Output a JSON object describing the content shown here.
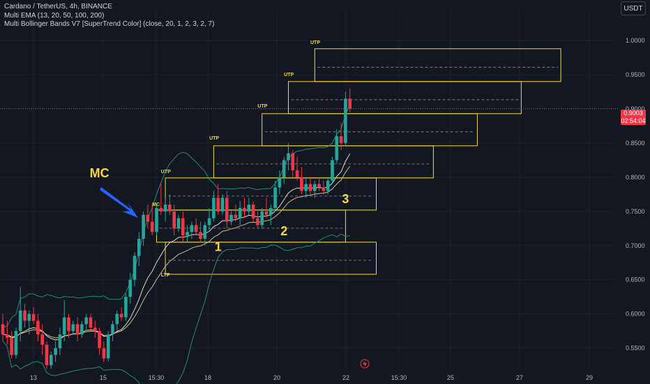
{
  "legend": {
    "symbol": "Cardano / TetherUS, 4h, BINANCE",
    "ema": "Multi EMA (13, 20, 50, 100, 200)",
    "bb": "Multi Bollinger Bands V7 [SuperTrend Color] (close, 20, 1, 2, 3, 2, 7)"
  },
  "currency": "USDT",
  "price_tag": {
    "price": "0.9003",
    "countdown": "02:54:04"
  },
  "colors": {
    "up": "#26a69a",
    "down": "#f23645",
    "box": "#f5d743",
    "arrow": "#2962ff",
    "bb": "#2a8a78",
    "ema": "#c8c08a"
  },
  "chart_data": {
    "type": "candlestick",
    "y_range": [
      0.52,
      1.045
    ],
    "y_ticks": [
      "1.0000",
      "0.9500",
      "0.9000",
      "0.8500",
      "0.8000",
      "0.7500",
      "0.7000",
      "0.6500",
      "0.6000",
      "0.5500"
    ],
    "x_ticks": [
      "13",
      "15",
      "15:30",
      "18",
      "20",
      "22",
      "15:30",
      "25",
      "27",
      "29"
    ],
    "current_price": 0.9003,
    "candles": [
      [
        0.585,
        0.6,
        0.56,
        0.57
      ],
      [
        0.57,
        0.59,
        0.555,
        0.565
      ],
      [
        0.565,
        0.575,
        0.535,
        0.54
      ],
      [
        0.54,
        0.58,
        0.535,
        0.575
      ],
      [
        0.575,
        0.64,
        0.56,
        0.605
      ],
      [
        0.605,
        0.615,
        0.58,
        0.59
      ],
      [
        0.59,
        0.605,
        0.57,
        0.6
      ],
      [
        0.6,
        0.61,
        0.585,
        0.59
      ],
      [
        0.59,
        0.6,
        0.56,
        0.57
      ],
      [
        0.57,
        0.585,
        0.54,
        0.555
      ],
      [
        0.555,
        0.56,
        0.52,
        0.525
      ],
      [
        0.525,
        0.545,
        0.52,
        0.54
      ],
      [
        0.54,
        0.56,
        0.53,
        0.55
      ],
      [
        0.55,
        0.58,
        0.54,
        0.57
      ],
      [
        0.57,
        0.62,
        0.56,
        0.595
      ],
      [
        0.595,
        0.6,
        0.565,
        0.575
      ],
      [
        0.575,
        0.59,
        0.57,
        0.585
      ],
      [
        0.585,
        0.595,
        0.56,
        0.57
      ],
      [
        0.57,
        0.59,
        0.565,
        0.585
      ],
      [
        0.585,
        0.6,
        0.575,
        0.595
      ],
      [
        0.595,
        0.6,
        0.575,
        0.58
      ],
      [
        0.58,
        0.59,
        0.565,
        0.575
      ],
      [
        0.575,
        0.58,
        0.54,
        0.55
      ],
      [
        0.55,
        0.56,
        0.53,
        0.535
      ],
      [
        0.535,
        0.575,
        0.53,
        0.57
      ],
      [
        0.57,
        0.59,
        0.56,
        0.585
      ],
      [
        0.585,
        0.605,
        0.575,
        0.6
      ],
      [
        0.6,
        0.61,
        0.59,
        0.595
      ],
      [
        0.595,
        0.63,
        0.59,
        0.625
      ],
      [
        0.625,
        0.66,
        0.615,
        0.65
      ],
      [
        0.65,
        0.69,
        0.64,
        0.685
      ],
      [
        0.685,
        0.72,
        0.67,
        0.71
      ],
      [
        0.71,
        0.75,
        0.7,
        0.745
      ],
      [
        0.745,
        0.76,
        0.725,
        0.735
      ],
      [
        0.735,
        0.76,
        0.715,
        0.72
      ],
      [
        0.72,
        0.76,
        0.715,
        0.755
      ],
      [
        0.755,
        0.79,
        0.745,
        0.75
      ],
      [
        0.75,
        0.77,
        0.735,
        0.76
      ],
      [
        0.76,
        0.775,
        0.745,
        0.75
      ],
      [
        0.75,
        0.76,
        0.715,
        0.725
      ],
      [
        0.725,
        0.745,
        0.72,
        0.74
      ],
      [
        0.74,
        0.75,
        0.705,
        0.715
      ],
      [
        0.715,
        0.73,
        0.705,
        0.72
      ],
      [
        0.72,
        0.735,
        0.71,
        0.73
      ],
      [
        0.73,
        0.74,
        0.715,
        0.72
      ],
      [
        0.72,
        0.735,
        0.705,
        0.71
      ],
      [
        0.71,
        0.735,
        0.7,
        0.73
      ],
      [
        0.73,
        0.755,
        0.72,
        0.74
      ],
      [
        0.74,
        0.78,
        0.735,
        0.77
      ],
      [
        0.77,
        0.79,
        0.745,
        0.75
      ],
      [
        0.75,
        0.775,
        0.745,
        0.77
      ],
      [
        0.77,
        0.78,
        0.725,
        0.735
      ],
      [
        0.735,
        0.75,
        0.73,
        0.745
      ],
      [
        0.745,
        0.76,
        0.735,
        0.74
      ],
      [
        0.74,
        0.765,
        0.73,
        0.755
      ],
      [
        0.755,
        0.77,
        0.74,
        0.75
      ],
      [
        0.75,
        0.77,
        0.745,
        0.76
      ],
      [
        0.76,
        0.765,
        0.735,
        0.74
      ],
      [
        0.74,
        0.75,
        0.725,
        0.73
      ],
      [
        0.73,
        0.755,
        0.725,
        0.75
      ],
      [
        0.75,
        0.77,
        0.74,
        0.745
      ],
      [
        0.745,
        0.76,
        0.73,
        0.755
      ],
      [
        0.755,
        0.795,
        0.75,
        0.785
      ],
      [
        0.785,
        0.81,
        0.775,
        0.8
      ],
      [
        0.8,
        0.83,
        0.79,
        0.825
      ],
      [
        0.825,
        0.85,
        0.81,
        0.835
      ],
      [
        0.835,
        0.84,
        0.8,
        0.81
      ],
      [
        0.81,
        0.83,
        0.795,
        0.8
      ],
      [
        0.8,
        0.815,
        0.775,
        0.78
      ],
      [
        0.78,
        0.8,
        0.77,
        0.79
      ],
      [
        0.79,
        0.8,
        0.775,
        0.78
      ],
      [
        0.78,
        0.795,
        0.77,
        0.79
      ],
      [
        0.79,
        0.8,
        0.78,
        0.785
      ],
      [
        0.785,
        0.795,
        0.775,
        0.78
      ],
      [
        0.78,
        0.8,
        0.775,
        0.795
      ],
      [
        0.795,
        0.83,
        0.79,
        0.825
      ],
      [
        0.825,
        0.87,
        0.82,
        0.86
      ],
      [
        0.86,
        0.88,
        0.84,
        0.85
      ],
      [
        0.85,
        0.925,
        0.845,
        0.915
      ],
      [
        0.915,
        0.93,
        0.895,
        0.9003
      ]
    ],
    "annotations": {
      "box_labels": [
        {
          "text": "UTP",
          "x": 70,
          "y": 0.995
        },
        {
          "text": "UTP",
          "x": 64,
          "y": 0.948
        },
        {
          "text": "UTP",
          "x": 58,
          "y": 0.902
        },
        {
          "text": "UTP",
          "x": 47,
          "y": 0.855
        },
        {
          "text": "UTP",
          "x": 36,
          "y": 0.806
        },
        {
          "text": "MC",
          "x": 34,
          "y": 0.758
        },
        {
          "text": "LTP",
          "x": 36,
          "y": 0.655
        }
      ],
      "callouts": [
        {
          "text": "MC",
          "x": 22,
          "y": 0.8
        },
        {
          "text": "1",
          "x": 49,
          "y": 0.692
        },
        {
          "text": "2",
          "x": 64,
          "y": 0.715
        },
        {
          "text": "3",
          "x": 78,
          "y": 0.762
        }
      ]
    },
    "boxes": [
      {
        "x0": 71,
        "x1": 127,
        "top": 0.988,
        "bottom": 0.94
      },
      {
        "x0": 65,
        "x1": 118,
        "top": 0.94,
        "bottom": 0.893
      },
      {
        "x0": 59,
        "x1": 108,
        "top": 0.893,
        "bottom": 0.846
      },
      {
        "x0": 48,
        "x1": 98,
        "top": 0.846,
        "bottom": 0.799
      },
      {
        "x0": 37,
        "x1": 85,
        "top": 0.799,
        "bottom": 0.752
      },
      {
        "x0": 35,
        "x1": 78,
        "top": 0.752,
        "bottom": 0.705
      },
      {
        "x0": 37,
        "x1": 85,
        "top": 0.705,
        "bottom": 0.658
      }
    ]
  }
}
